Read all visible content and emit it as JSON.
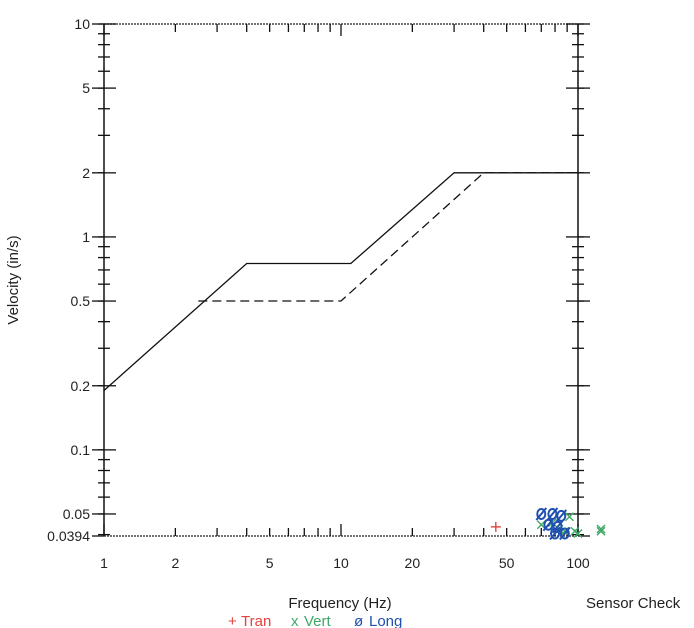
{
  "chart_data": {
    "type": "scatter",
    "title": "",
    "xlabel": "Frequency (Hz)",
    "ylabel": "Velocity (in/s)",
    "x_scale": "log",
    "y_scale": "log",
    "xlim": [
      1,
      100
    ],
    "ylim": [
      0.0394,
      10
    ],
    "grid": false,
    "x_tick_labels": [
      {
        "value": 1,
        "label": "1"
      },
      {
        "value": 2,
        "label": "2"
      },
      {
        "value": 5,
        "label": "5"
      },
      {
        "value": 10,
        "label": "10"
      },
      {
        "value": 20,
        "label": "20"
      },
      {
        "value": 50,
        "label": "50"
      },
      {
        "value": 100,
        "label": "100"
      }
    ],
    "y_tick_labels": [
      {
        "value": 0.0394,
        "label": "0.0394"
      },
      {
        "value": 0.05,
        "label": "0.05"
      },
      {
        "value": 0.1,
        "label": "0.1"
      },
      {
        "value": 0.2,
        "label": "0.2"
      },
      {
        "value": 0.5,
        "label": "0.5"
      },
      {
        "value": 1,
        "label": "1"
      },
      {
        "value": 2,
        "label": "2"
      },
      {
        "value": 5,
        "label": "5"
      },
      {
        "value": 10,
        "label": "10"
      }
    ],
    "limit_lines": [
      {
        "style": "solid",
        "x": [
          1,
          4,
          11,
          30,
          100
        ],
        "y": [
          0.19,
          0.75,
          0.75,
          2.0,
          2.0
        ]
      },
      {
        "style": "dashed",
        "x": [
          2.5,
          10,
          40,
          100
        ],
        "y": [
          0.5,
          0.5,
          2.0,
          2.0
        ]
      }
    ],
    "series": [
      {
        "name": "Tran",
        "marker": "+",
        "color": "#e8413c",
        "x": [
          45
        ],
        "y": [
          0.0435
        ]
      },
      {
        "name": "Vert",
        "marker": "x",
        "color": "#3fa867",
        "x": [
          70,
          78,
          83,
          88,
          92,
          97,
          100,
          125,
          125
        ],
        "y": [
          0.0445,
          0.0455,
          0.0425,
          0.0415,
          0.0485,
          0.0415,
          0.0405,
          0.0425,
          0.0415
        ]
      },
      {
        "name": "Long",
        "marker": "ø",
        "color": "#1f4fb0",
        "x": [
          70,
          75,
          78,
          82,
          85,
          88,
          80
        ],
        "y": [
          0.05,
          0.0445,
          0.05,
          0.0435,
          0.049,
          0.0405,
          0.0405
        ]
      }
    ]
  },
  "legend": {
    "items": [
      {
        "symbol": "+",
        "label": "Tran",
        "color": "#e8413c"
      },
      {
        "symbol": "x",
        "label": "Vert",
        "color": "#3fa867"
      },
      {
        "symbol": "ø",
        "label": "Long",
        "color": "#1f4fb0"
      }
    ]
  },
  "side_label": "Sensor Check"
}
